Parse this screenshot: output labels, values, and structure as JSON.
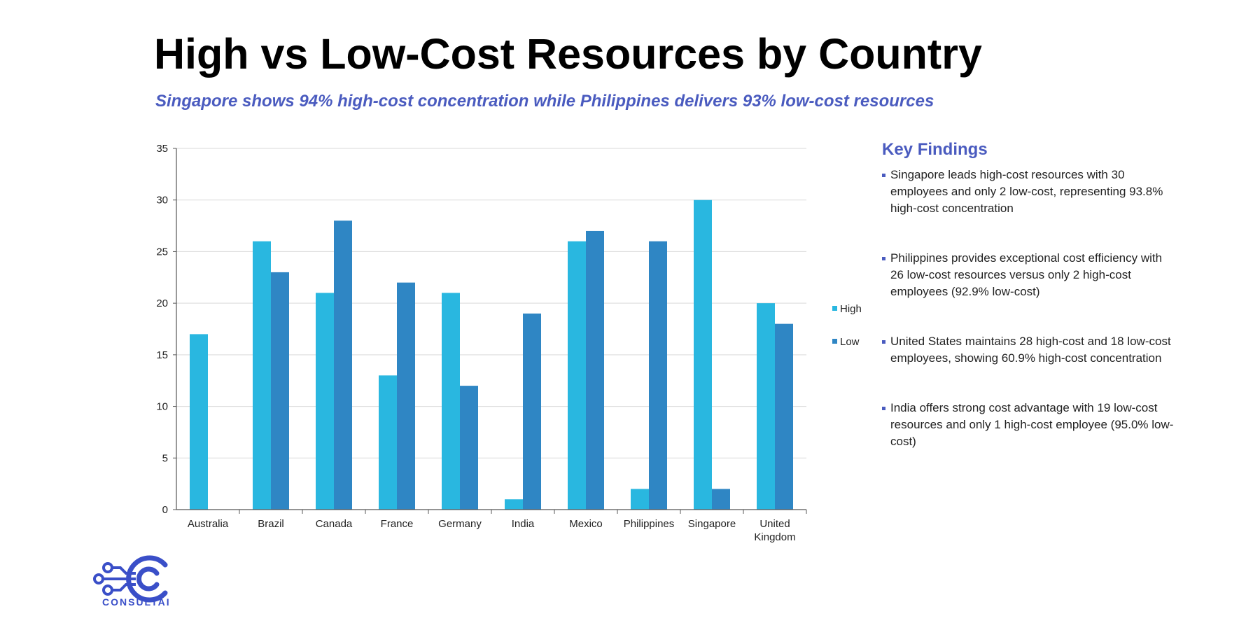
{
  "title": "High vs Low-Cost Resources by Country",
  "subtitle": "Singapore shows 94% high-cost concentration while Philippines delivers 93% low-cost resources",
  "chart_data": {
    "type": "bar",
    "categories": [
      [
        "Australia"
      ],
      [
        "Brazil"
      ],
      [
        "Canada"
      ],
      [
        "France"
      ],
      [
        "Germany"
      ],
      [
        "India"
      ],
      [
        "Mexico"
      ],
      [
        "Philippines"
      ],
      [
        "Singapore"
      ],
      [
        "United",
        "Kingdom"
      ]
    ],
    "series": [
      {
        "name": "High",
        "color": "#29b7e0",
        "values": [
          17,
          26,
          21,
          13,
          21,
          1,
          26,
          2,
          30,
          20
        ]
      },
      {
        "name": "Low",
        "color": "#2f86c4",
        "values": [
          0,
          23,
          28,
          22,
          12,
          19,
          27,
          26,
          2,
          18
        ]
      }
    ],
    "yticks": [
      0,
      5,
      10,
      15,
      20,
      25,
      30,
      35
    ],
    "ylim": [
      0,
      35
    ],
    "grid": true,
    "legend": "right",
    "xlabel": "",
    "ylabel": ""
  },
  "findings": {
    "heading": "Key Findings",
    "items": [
      "Singapore leads high-cost resources with 30 employees and only 2 low-cost, representing 93.8% high-cost concentration",
      "Philippines provides exceptional cost efficiency with 26 low-cost resources versus only 2 high-cost employees (92.9% low-cost)",
      "United States maintains 28 high-cost and 18 low-cost employees, showing 60.9% high-cost concentration",
      "India offers strong cost advantage with 19 low-cost resources and only 1 high-cost employee (95.0% low-cost)"
    ]
  },
  "logo": {
    "text": "CONSULTAI",
    "color": "#3a4fc8"
  }
}
